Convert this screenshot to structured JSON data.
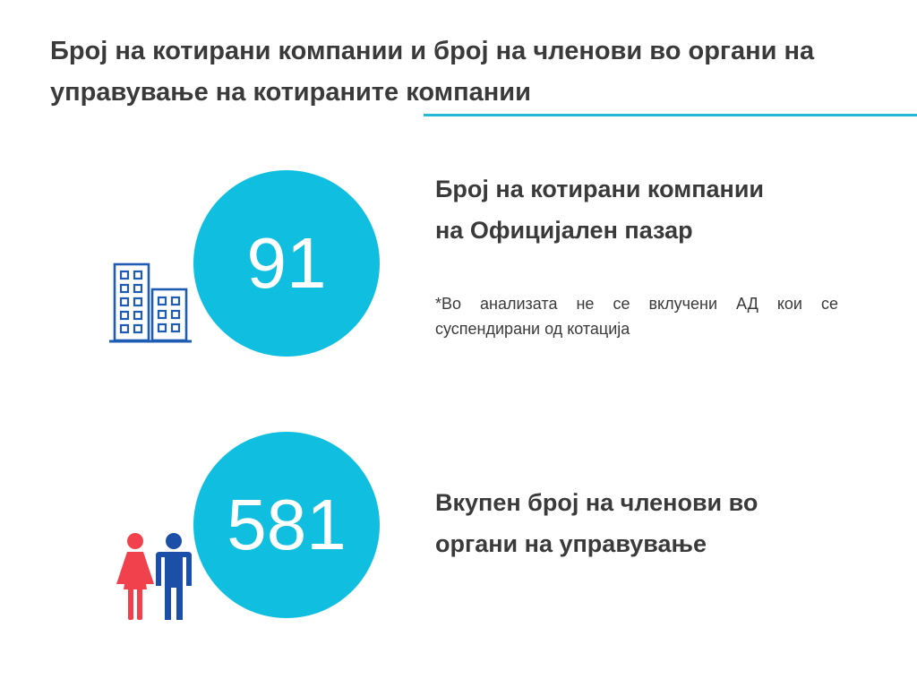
{
  "header": {
    "title": "Број на котирани компании и број на членови во органи на управување на котираните компании"
  },
  "stats": [
    {
      "value": "91",
      "caption": "Број на котирани компании на Официјален пазар",
      "note": "*Во анализата не се вклучени АД кои се суспендирани од котација",
      "icon": "building-icon"
    },
    {
      "value": "581",
      "caption": "Вкупен број на членови во органи на управување",
      "icon": "people-icon"
    }
  ],
  "colors": {
    "accent": "#10bfdf",
    "rule": "#22b8d6",
    "building": "#1e5cb3",
    "female": "#f0414c",
    "male": "#1c4fa8",
    "text": "#3a3a3a"
  }
}
